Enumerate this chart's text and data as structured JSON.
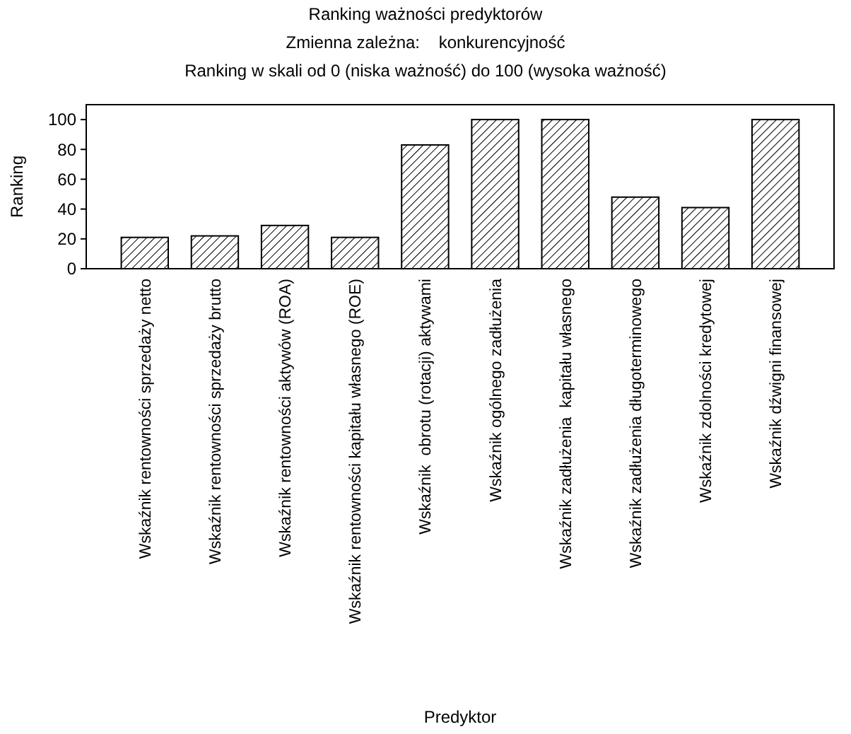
{
  "chart_data": {
    "type": "bar",
    "title": "Ranking ważności predyktorów",
    "subtitle": "Zmienna zależna:    konkurencyjność",
    "annotations": [
      "Ranking w skali od 0 (niska ważność) do 100 (wysoka ważność)"
    ],
    "xlabel": "Predyktor",
    "ylabel": "Ranking",
    "categories": [
      "Wskaźnik rentowności sprzedaży netto",
      "Wskaźnik rentowności sprzedaży brutto",
      "Wskaźnik rentowności aktywów (ROA)",
      "Wskaźnik rentowności kapitału własnego (ROE)",
      "Wskaźnik  obrotu (rotacji) aktywami",
      "Wskaźnik ogólnego zadłużenia",
      "Wskaźnik zadłużenia  kapitału własnego",
      "Wskaźnik zadłużenia długoterminowego",
      "Wskaźnik zdolności kredytowej",
      "Wskaźnik dźwigni finansowej"
    ],
    "values": [
      21,
      22,
      29,
      21,
      83,
      100,
      100,
      48,
      41,
      100
    ],
    "color": "#000000",
    "ylim": [
      0,
      110
    ],
    "yticks": [
      0,
      20,
      40,
      60,
      80,
      100
    ],
    "grid": false
  }
}
